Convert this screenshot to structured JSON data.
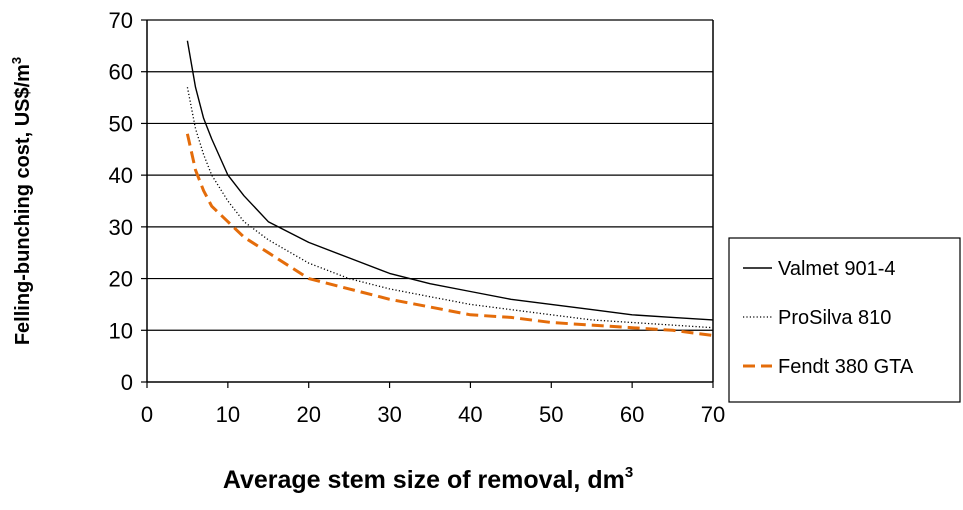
{
  "chart_data": {
    "type": "line",
    "xlabel": "Average stem size of removal, dm",
    "xlabel_superscript": "3",
    "ylabel": "Felling-bunching cost, US$/m",
    "ylabel_superscript": "3",
    "xlim": [
      0,
      70
    ],
    "ylim": [
      0,
      70
    ],
    "x_ticks": [
      "0",
      "10",
      "20",
      "30",
      "40",
      "50",
      "60",
      "70"
    ],
    "y_ticks": [
      "0",
      "10",
      "20",
      "30",
      "40",
      "50",
      "60",
      "70"
    ],
    "grid": "horizontal",
    "legend_position": "right",
    "series": [
      {
        "name": "Valmet 901-4",
        "color": "#000000",
        "style": "solid",
        "x": [
          5,
          6,
          7,
          8,
          10,
          12,
          15,
          20,
          25,
          30,
          35,
          40,
          45,
          50,
          55,
          60,
          65,
          70
        ],
        "y": [
          66,
          57,
          51,
          47,
          40,
          36,
          31,
          27,
          24,
          21,
          19,
          17.5,
          16,
          15,
          14,
          13,
          12.5,
          12
        ]
      },
      {
        "name": "ProSilva 810",
        "color": "#000000",
        "style": "dotted",
        "x": [
          5,
          6,
          7,
          8,
          10,
          12,
          15,
          20,
          25,
          30,
          35,
          40,
          45,
          50,
          55,
          60,
          65,
          70
        ],
        "y": [
          57,
          49,
          44,
          40,
          35,
          31,
          27.5,
          23,
          20,
          18,
          16.5,
          15,
          14,
          13,
          12,
          11.5,
          11,
          10.5
        ]
      },
      {
        "name": "Fendt 380 GTA",
        "color": "#E46C0A",
        "style": "dashed",
        "x": [
          5,
          6,
          7,
          8,
          10,
          12,
          15,
          20,
          25,
          30,
          35,
          40,
          45,
          50,
          55,
          60,
          65,
          70
        ],
        "y": [
          48,
          41,
          37,
          34,
          31,
          28,
          25,
          20,
          18,
          16,
          14.5,
          13,
          12.5,
          11.5,
          11,
          10.5,
          10,
          9
        ]
      }
    ]
  }
}
